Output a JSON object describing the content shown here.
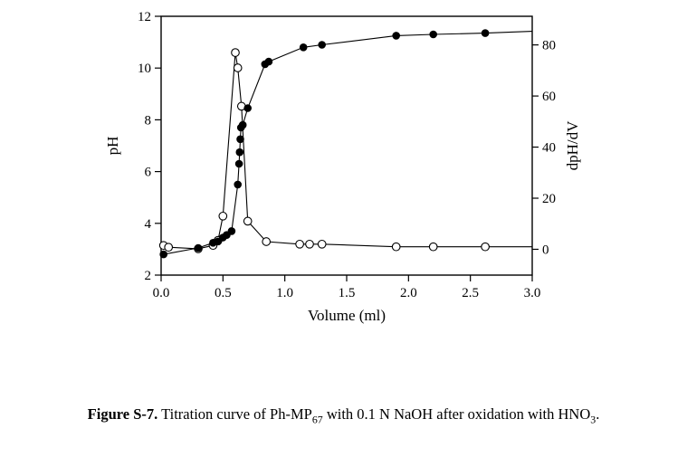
{
  "page": {
    "background": "#ffffff",
    "ink_color": "#000000"
  },
  "figure": {
    "caption": {
      "label": "Figure S-7.",
      "segments": [
        {
          "text": " Titration curve of Ph-MP"
        },
        {
          "text": "67",
          "sub": true
        },
        {
          "text": " with 0.1 N NaOH after oxidation with HNO"
        },
        {
          "text": "3",
          "sub": true
        },
        {
          "text": "."
        }
      ]
    }
  },
  "chart_data": {
    "type": "scatter",
    "title": "",
    "xlabel": "Volume (ml)",
    "ylabel_left": "pH",
    "ylabel_right": "dpH/dV",
    "xlim": [
      0,
      3
    ],
    "x_ticks": [
      0,
      0.5,
      1,
      1.5,
      2,
      2.5,
      3
    ],
    "x_tick_labels": [
      "0.0",
      "0.5",
      "1.0",
      "1.5",
      "2.0",
      "2.5",
      "3.0"
    ],
    "ylim_left": [
      2,
      12
    ],
    "y_ticks_left": [
      2,
      4,
      6,
      8,
      10,
      12
    ],
    "y_tick_labels_left": [
      "2",
      "4",
      "6",
      "8",
      "10",
      "12"
    ],
    "ylim_right": [
      -10.1,
      91.2
    ],
    "y_ticks_right": [
      0,
      20,
      40,
      60,
      80
    ],
    "y_tick_labels_right": [
      "0",
      "20",
      "40",
      "60",
      "80"
    ],
    "grid": false,
    "legend": "none",
    "frame": true,
    "series": [
      {
        "name": "dpH/dV",
        "axis": "right",
        "marker": "open-circle",
        "marker_color": "#000000",
        "line_color": "#000000",
        "points": [
          [
            0.02,
            1.5
          ],
          [
            0.06,
            0.8
          ],
          [
            0.3,
            0.2
          ],
          [
            0.42,
            1.5
          ],
          [
            0.46,
            3.5
          ],
          [
            0.5,
            13
          ],
          [
            0.6,
            77
          ],
          [
            0.62,
            71
          ],
          [
            0.65,
            56
          ],
          [
            0.7,
            11
          ],
          [
            0.85,
            3
          ],
          [
            1.12,
            2
          ],
          [
            1.2,
            2
          ],
          [
            1.3,
            2
          ],
          [
            1.9,
            1
          ],
          [
            2.2,
            1
          ],
          [
            2.62,
            1
          ]
        ],
        "line_end": [
          3.0,
          1
        ]
      },
      {
        "name": "pH",
        "axis": "left",
        "marker": "filled-circle",
        "marker_color": "#000000",
        "line_color": "#000000",
        "points": [
          [
            0.02,
            2.8
          ],
          [
            0.3,
            3.05
          ],
          [
            0.42,
            3.25
          ],
          [
            0.46,
            3.3
          ],
          [
            0.5,
            3.45
          ],
          [
            0.53,
            3.55
          ],
          [
            0.57,
            3.7
          ],
          [
            0.62,
            5.5
          ],
          [
            0.63,
            6.3
          ],
          [
            0.635,
            6.75
          ],
          [
            0.64,
            7.25
          ],
          [
            0.645,
            7.7
          ],
          [
            0.66,
            7.8
          ],
          [
            0.7,
            8.45
          ],
          [
            0.84,
            10.15
          ],
          [
            0.87,
            10.25
          ],
          [
            1.15,
            10.8
          ],
          [
            1.3,
            10.9
          ],
          [
            1.9,
            11.25
          ],
          [
            2.2,
            11.3
          ],
          [
            2.62,
            11.35
          ]
        ],
        "line_end": [
          3.0,
          11.42
        ]
      }
    ]
  }
}
